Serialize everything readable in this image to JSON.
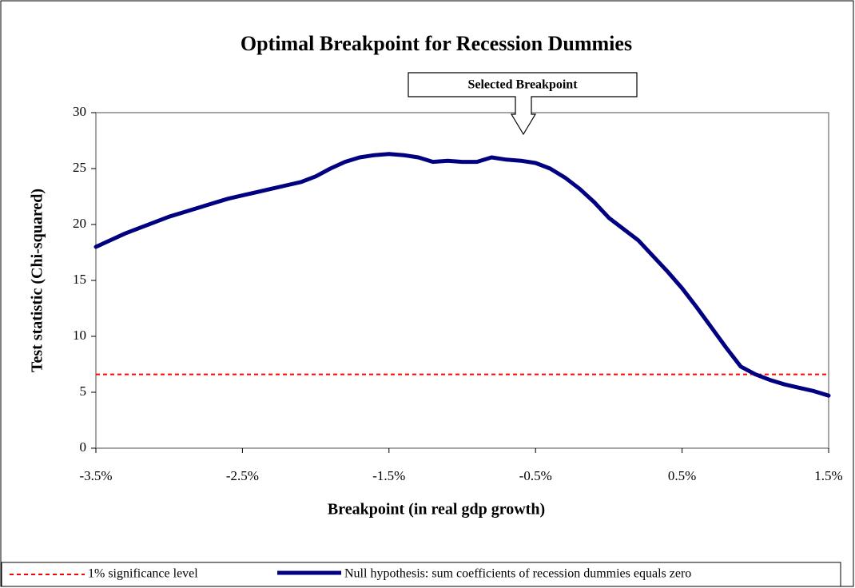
{
  "chart_data": {
    "type": "line",
    "title": "Optimal Breakpoint for Recession Dummies",
    "x_label": "Breakpoint (in real gdp growth)",
    "y_label": "Test statistic (Chi-squared)",
    "annotation": "Selected Breakpoint",
    "x": [
      -3.5,
      -3.4,
      -3.3,
      -3.2,
      -3.1,
      -3.0,
      -2.9,
      -2.8,
      -2.7,
      -2.6,
      -2.5,
      -2.4,
      -2.3,
      -2.2,
      -2.1,
      -2.0,
      -1.9,
      -1.8,
      -1.7,
      -1.6,
      -1.5,
      -1.4,
      -1.3,
      -1.2,
      -1.1,
      -1.0,
      -0.9,
      -0.8,
      -0.7,
      -0.6,
      -0.5,
      -0.4,
      -0.3,
      -0.2,
      -0.1,
      0.0,
      0.1,
      0.2,
      0.3,
      0.4,
      0.5,
      0.6,
      0.7,
      0.8,
      0.9,
      1.0,
      1.1,
      1.2,
      1.3,
      1.4,
      1.5
    ],
    "series": [
      {
        "name": "Null hypothesis: sum coefficients of recession dummies equals zero",
        "color": "#000080",
        "values": [
          18.0,
          18.6,
          19.2,
          19.7,
          20.2,
          20.7,
          21.1,
          21.5,
          21.9,
          22.3,
          22.6,
          22.9,
          23.2,
          23.5,
          23.8,
          24.3,
          25.0,
          25.6,
          26.0,
          26.2,
          26.3,
          26.2,
          26.0,
          25.6,
          25.7,
          25.6,
          25.6,
          26.0,
          25.8,
          25.7,
          25.5,
          25.0,
          24.2,
          23.2,
          22.0,
          20.6,
          19.6,
          18.6,
          17.2,
          15.8,
          14.3,
          12.6,
          10.8,
          9.0,
          7.3,
          6.6,
          6.1,
          5.7,
          5.4,
          5.1,
          4.7
        ]
      }
    ],
    "reference_line": {
      "name": "1% significance level",
      "color": "#ff0000",
      "value": 6.6
    },
    "xlim": [
      -3.5,
      1.5
    ],
    "xticks": [
      {
        "value": -3.5,
        "label": "-3.5%"
      },
      {
        "value": -2.5,
        "label": "-2.5%"
      },
      {
        "value": -1.5,
        "label": "-1.5%"
      },
      {
        "value": -0.5,
        "label": "-0.5%"
      },
      {
        "value": 0.5,
        "label": "0.5%"
      },
      {
        "value": 1.5,
        "label": "1.5%"
      }
    ],
    "ylim": [
      0,
      30
    ],
    "yticks": [
      0,
      5,
      10,
      15,
      20,
      25,
      30
    ],
    "grid": false
  }
}
